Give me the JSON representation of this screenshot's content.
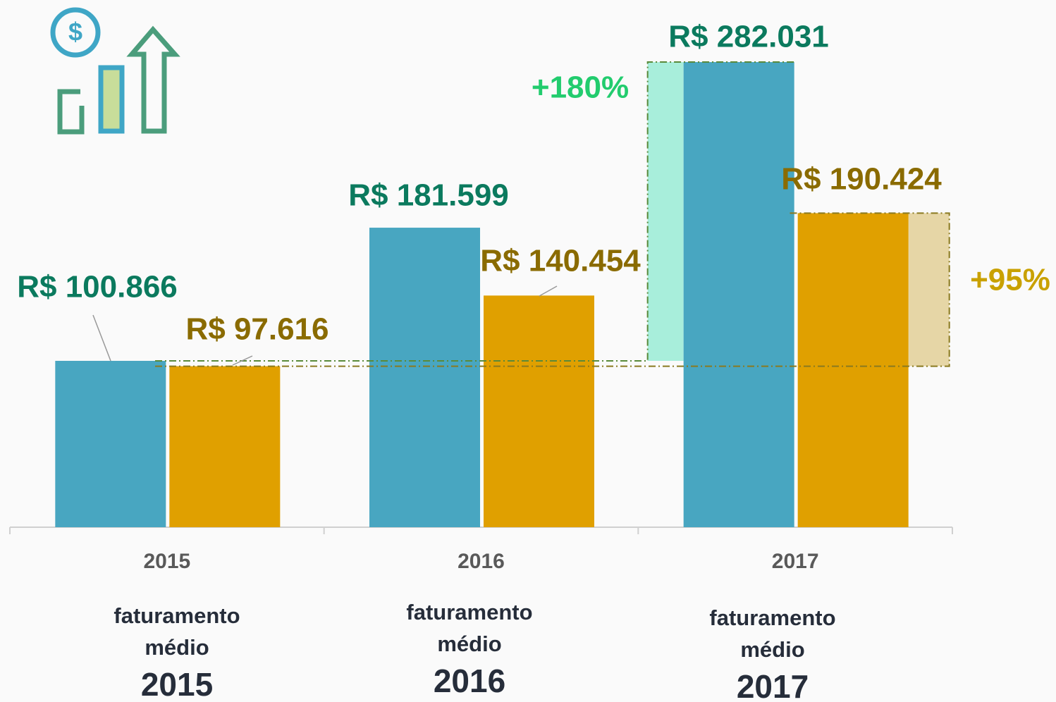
{
  "chart_data": {
    "type": "bar",
    "categories": [
      "2015",
      "2016",
      "2017"
    ],
    "series": [
      {
        "color": "#48a6c1",
        "values": [
          100866,
          181599,
          282031
        ],
        "value_labels": [
          "R$ 100.866",
          "R$ 181.599",
          "R$ 282.031"
        ],
        "label_color": "#0b7a5e"
      },
      {
        "color": "#e0a000",
        "values": [
          97616,
          140454,
          190424
        ],
        "value_labels": [
          "R$ 97.616",
          "R$ 140.454",
          "R$ 190.424"
        ],
        "label_color": "#8a6b00"
      }
    ],
    "ylim": [
      0,
      300000
    ],
    "annotations": [
      {
        "text": "+180%",
        "color": "#22cc6e",
        "fill": "#a8eedb"
      },
      {
        "text": "+95%",
        "color": "#c9a100",
        "fill": "#e6d6a6"
      }
    ],
    "captions": [
      {
        "line1": "faturamento",
        "line2": "médio",
        "year": "2015"
      },
      {
        "line1": "faturamento",
        "line2": "médio",
        "year": "2016"
      },
      {
        "line1": "faturamento",
        "line2": "médio",
        "year": "2017"
      }
    ]
  }
}
